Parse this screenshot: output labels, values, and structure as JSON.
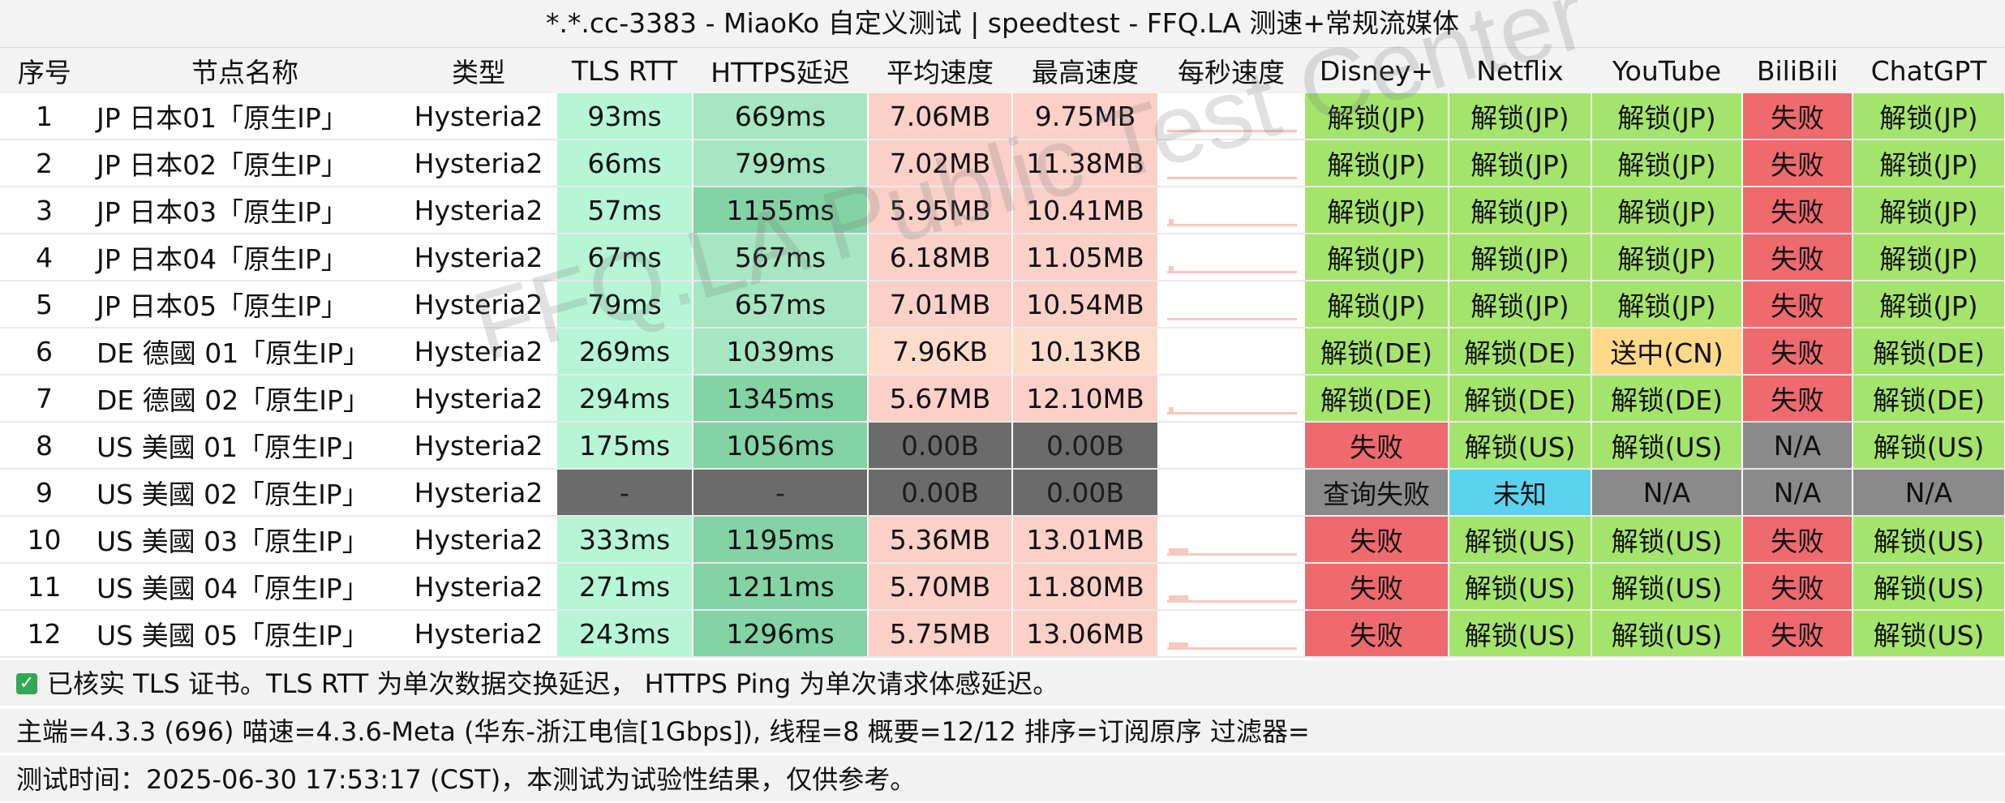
{
  "title": "*.*.cc-3383 - MiaoKo 自定义测试 | speedtest - FFQ.LA 测速+常规流媒体",
  "headers": [
    "序号",
    "节点名称",
    "类型",
    "TLS RTT",
    "HTTPS延迟",
    "平均速度",
    "最高速度",
    "每秒速度",
    "Disney+",
    "Netflix",
    "YouTube",
    "BiliBili",
    "ChatGPT"
  ],
  "rows": [
    {
      "idx": "1",
      "name": "JP 日本01「原生IP」",
      "type": "Hysteria2",
      "tls": "93ms",
      "https": "669ms",
      "avg": "7.06MB",
      "max": "9.75MB",
      "disney": "解锁(JP)",
      "netflix": "解锁(JP)",
      "youtube": "解锁(JP)",
      "bili": "失败",
      "gpt": "解锁(JP)"
    },
    {
      "idx": "2",
      "name": "JP 日本02「原生IP」",
      "type": "Hysteria2",
      "tls": "66ms",
      "https": "799ms",
      "avg": "7.02MB",
      "max": "11.38MB",
      "disney": "解锁(JP)",
      "netflix": "解锁(JP)",
      "youtube": "解锁(JP)",
      "bili": "失败",
      "gpt": "解锁(JP)"
    },
    {
      "idx": "3",
      "name": "JP 日本03「原生IP」",
      "type": "Hysteria2",
      "tls": "57ms",
      "https": "1155ms",
      "avg": "5.95MB",
      "max": "10.41MB",
      "disney": "解锁(JP)",
      "netflix": "解锁(JP)",
      "youtube": "解锁(JP)",
      "bili": "失败",
      "gpt": "解锁(JP)"
    },
    {
      "idx": "4",
      "name": "JP 日本04「原生IP」",
      "type": "Hysteria2",
      "tls": "67ms",
      "https": "567ms",
      "avg": "6.18MB",
      "max": "11.05MB",
      "disney": "解锁(JP)",
      "netflix": "解锁(JP)",
      "youtube": "解锁(JP)",
      "bili": "失败",
      "gpt": "解锁(JP)"
    },
    {
      "idx": "5",
      "name": "JP 日本05「原生IP」",
      "type": "Hysteria2",
      "tls": "79ms",
      "https": "657ms",
      "avg": "7.01MB",
      "max": "10.54MB",
      "disney": "解锁(JP)",
      "netflix": "解锁(JP)",
      "youtube": "解锁(JP)",
      "bili": "失败",
      "gpt": "解锁(JP)"
    },
    {
      "idx": "6",
      "name": "DE 德國 01「原生IP」",
      "type": "Hysteria2",
      "tls": "269ms",
      "https": "1039ms",
      "avg": "7.96KB",
      "max": "10.13KB",
      "disney": "解锁(DE)",
      "netflix": "解锁(DE)",
      "youtube": "送中(CN)",
      "bili": "失败",
      "gpt": "解锁(DE)"
    },
    {
      "idx": "7",
      "name": "DE 德國 02「原生IP」",
      "type": "Hysteria2",
      "tls": "294ms",
      "https": "1345ms",
      "avg": "5.67MB",
      "max": "12.10MB",
      "disney": "解锁(DE)",
      "netflix": "解锁(DE)",
      "youtube": "解锁(DE)",
      "bili": "失败",
      "gpt": "解锁(DE)"
    },
    {
      "idx": "8",
      "name": "US 美國 01「原生IP」",
      "type": "Hysteria2",
      "tls": "175ms",
      "https": "1056ms",
      "avg": "0.00B",
      "max": "0.00B",
      "disney": "失败",
      "netflix": "解锁(US)",
      "youtube": "解锁(US)",
      "bili": "N/A",
      "gpt": "解锁(US)"
    },
    {
      "idx": "9",
      "name": "US 美國 02「原生IP」",
      "type": "Hysteria2",
      "tls": "-",
      "https": "-",
      "avg": "0.00B",
      "max": "0.00B",
      "disney": "查询失败",
      "netflix": "未知",
      "youtube": "N/A",
      "bili": "N/A",
      "gpt": "N/A"
    },
    {
      "idx": "10",
      "name": "US 美國 03「原生IP」",
      "type": "Hysteria2",
      "tls": "333ms",
      "https": "1195ms",
      "avg": "5.36MB",
      "max": "13.01MB",
      "disney": "失败",
      "netflix": "解锁(US)",
      "youtube": "解锁(US)",
      "bili": "失败",
      "gpt": "解锁(US)"
    },
    {
      "idx": "11",
      "name": "US 美國 04「原生IP」",
      "type": "Hysteria2",
      "tls": "271ms",
      "https": "1211ms",
      "avg": "5.70MB",
      "max": "11.80MB",
      "disney": "失败",
      "netflix": "解锁(US)",
      "youtube": "解锁(US)",
      "bili": "失败",
      "gpt": "解锁(US)"
    },
    {
      "idx": "12",
      "name": "US 美國 05「原生IP」",
      "type": "Hysteria2",
      "tls": "243ms",
      "https": "1296ms",
      "avg": "5.75MB",
      "max": "13.06MB",
      "disney": "失败",
      "netflix": "解锁(US)",
      "youtube": "解锁(US)",
      "bili": "失败",
      "gpt": "解锁(US)"
    }
  ],
  "footer": {
    "tls_note": "已核实 TLS 证书。TLS RTT 为单次数据交换延迟， HTTPS Ping 为单次请求体感延迟。",
    "env": "主端=4.3.3 (696) 喵速=4.3.6-Meta (华东-浙江电信[1Gbps]), 线程=8 概要=12/12 排序=订阅原序 过滤器=",
    "time": "测试时间：2025-06-30 17:53:17 (CST)，本测试为试验性结果，仅供参考。"
  },
  "watermark": "FFQ.LA Public Test Center",
  "status_colors": {
    "unlock": "#a4e46c",
    "fail": "#ee6a6e",
    "warn": "#ffd98a",
    "na": "#8a8a8a",
    "unknown": "#5bd3ee",
    "tls": "#b6f5d6",
    "speed": "#fbd0c8"
  }
}
